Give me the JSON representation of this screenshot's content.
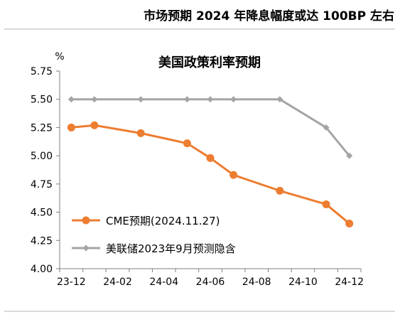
{
  "header": {
    "title": "市场预期 2024 年降息幅度或达 100BP 左右"
  },
  "chart_data": {
    "type": "line",
    "title": "美国政策利率预期",
    "ylabel": "%",
    "ylim": [
      4.0,
      5.75
    ],
    "y_ticks": [
      "4.00",
      "4.25",
      "4.50",
      "4.75",
      "5.00",
      "5.25",
      "5.50",
      "5.75"
    ],
    "x_tick_labels": [
      "23-12",
      "24-02",
      "24-04",
      "24-06",
      "24-08",
      "24-10",
      "24-12"
    ],
    "x_ticks": [
      1,
      3,
      5,
      7,
      9,
      11,
      13
    ],
    "x_range": [
      0.5,
      13.5
    ],
    "grid": false,
    "legend_position": "bottom-left",
    "series": [
      {
        "name": "CME预期(2024.11.27)",
        "color": "#ED7D31",
        "marker": "circle",
        "x": [
          1,
          2,
          4,
          6,
          7,
          8,
          10,
          12,
          13
        ],
        "values": [
          5.25,
          5.27,
          5.2,
          5.11,
          4.98,
          4.83,
          4.69,
          4.57,
          4.4
        ]
      },
      {
        "name": "美联储2023年9月预测隐含",
        "color": "#A5A5A5",
        "marker": "diamond",
        "x": [
          1,
          2,
          4,
          6,
          7,
          8,
          10,
          12,
          13
        ],
        "values": [
          5.5,
          5.5,
          5.5,
          5.5,
          5.5,
          5.5,
          5.5,
          5.25,
          5.0
        ]
      }
    ]
  }
}
